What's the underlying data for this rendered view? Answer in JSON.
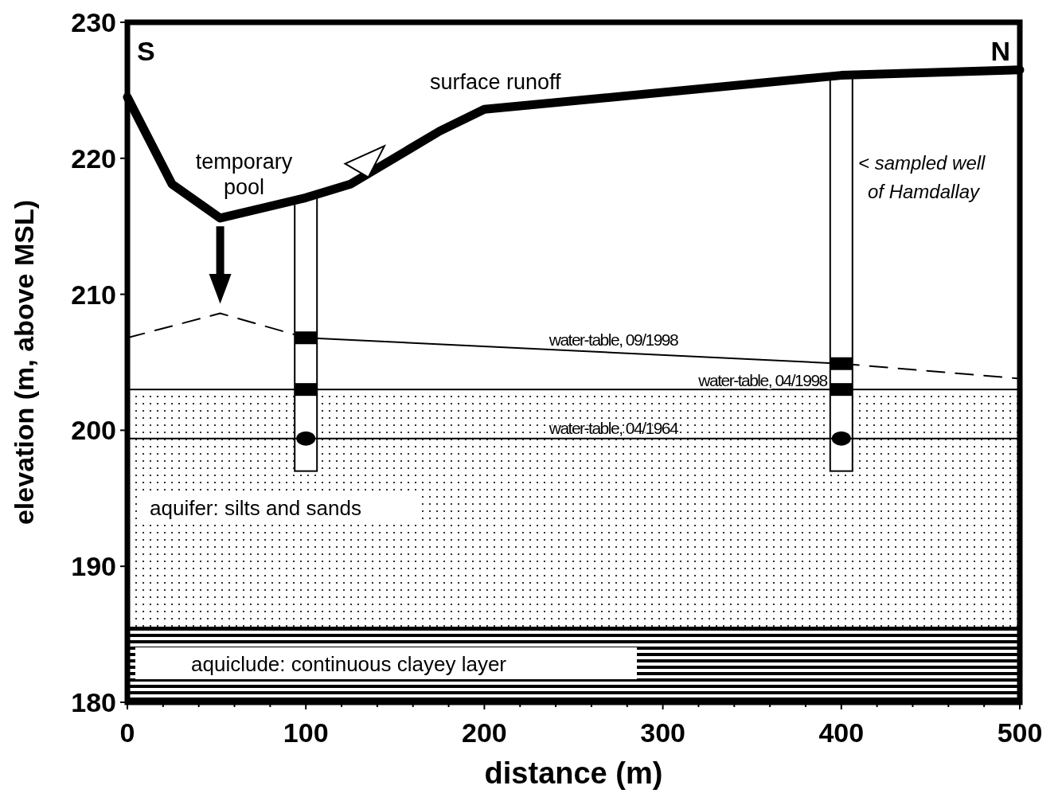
{
  "chart_data": {
    "type": "line",
    "xlabel": "distance (m)",
    "ylabel": "elevation (m, above MSL)",
    "xlim": [
      0,
      500
    ],
    "ylim": [
      180,
      230
    ],
    "xticks": [
      0,
      {
        "value": 20,
        "label": null
      },
      {
        "value": 40,
        "label": null
      },
      {
        "value": 60,
        "label": null
      },
      {
        "value": 80,
        "label": null
      },
      100,
      {
        "value": 120,
        "label": null
      },
      {
        "value": 140,
        "label": null
      },
      {
        "value": 160,
        "label": null
      },
      {
        "value": 180,
        "label": null
      },
      200,
      {
        "value": 220,
        "label": null
      },
      {
        "value": 240,
        "label": null
      },
      {
        "value": 260,
        "label": null
      },
      {
        "value": 280,
        "label": null
      },
      300,
      {
        "value": 320,
        "label": null
      },
      {
        "value": 340,
        "label": null
      },
      {
        "value": 360,
        "label": null
      },
      {
        "value": 380,
        "label": null
      },
      400,
      {
        "value": 420,
        "label": null
      },
      {
        "value": 440,
        "label": null
      },
      {
        "value": 460,
        "label": null
      },
      {
        "value": 480,
        "label": null
      },
      500
    ],
    "yticks": [
      180,
      190,
      200,
      210,
      220,
      230
    ],
    "series": [
      {
        "color": "#000000",
        "x": [
          0,
          25,
          52,
          100,
          125,
          175,
          200,
          400,
          500
        ],
        "values": [
          224.5,
          218.1,
          215.6,
          217.1,
          218.1,
          222,
          223.6,
          226.1,
          226.5
        ],
        "marker": "none",
        "line_style": "solid"
      },
      {
        "color": "#000000",
        "x": [
          0,
          52,
          100
        ],
        "values": [
          206.8,
          208.6,
          206.8
        ],
        "marker": "none",
        "line_style": "dashed"
      },
      {
        "name": "water-table, 09/1998",
        "color": "#000000",
        "x": [
          100,
          400
        ],
        "values": [
          206.8,
          204.9
        ],
        "marker": "square",
        "line_style": "solid"
      },
      {
        "color": "#000000",
        "x": [
          400,
          500
        ],
        "values": [
          204.9,
          203.8
        ],
        "marker": "none",
        "line_style": "dashed"
      },
      {
        "name": "water-table, 04/1998",
        "type": "scatter",
        "color": "#000000",
        "x": [
          100,
          400
        ],
        "values": [
          203,
          203
        ],
        "marker": "square"
      },
      {
        "name": "water-table, 04/1964",
        "color": "#000000",
        "x": [
          0,
          500
        ],
        "values": [
          199.4,
          199.4
        ],
        "marker": "none",
        "line_style": "solid"
      },
      {
        "type": "scatter",
        "color": "#000000",
        "x": [
          100,
          400
        ],
        "values": [
          199.4,
          199.4
        ],
        "marker": "circle"
      }
    ],
    "bands": [
      {
        "axis": "y",
        "from": 185.5,
        "to": 203,
        "label": "aquifer: silts and sands"
      },
      {
        "axis": "y",
        "from": 180,
        "to": 185.5,
        "label": "aquiclude: continuous clayey layer"
      }
    ],
    "annotations": [
      "S",
      "N",
      {
        "text": "temporary pool",
        "x": 52,
        "y": 215.6
      },
      "surface runoff",
      "< sampled well of Hamdallay"
    ]
  }
}
